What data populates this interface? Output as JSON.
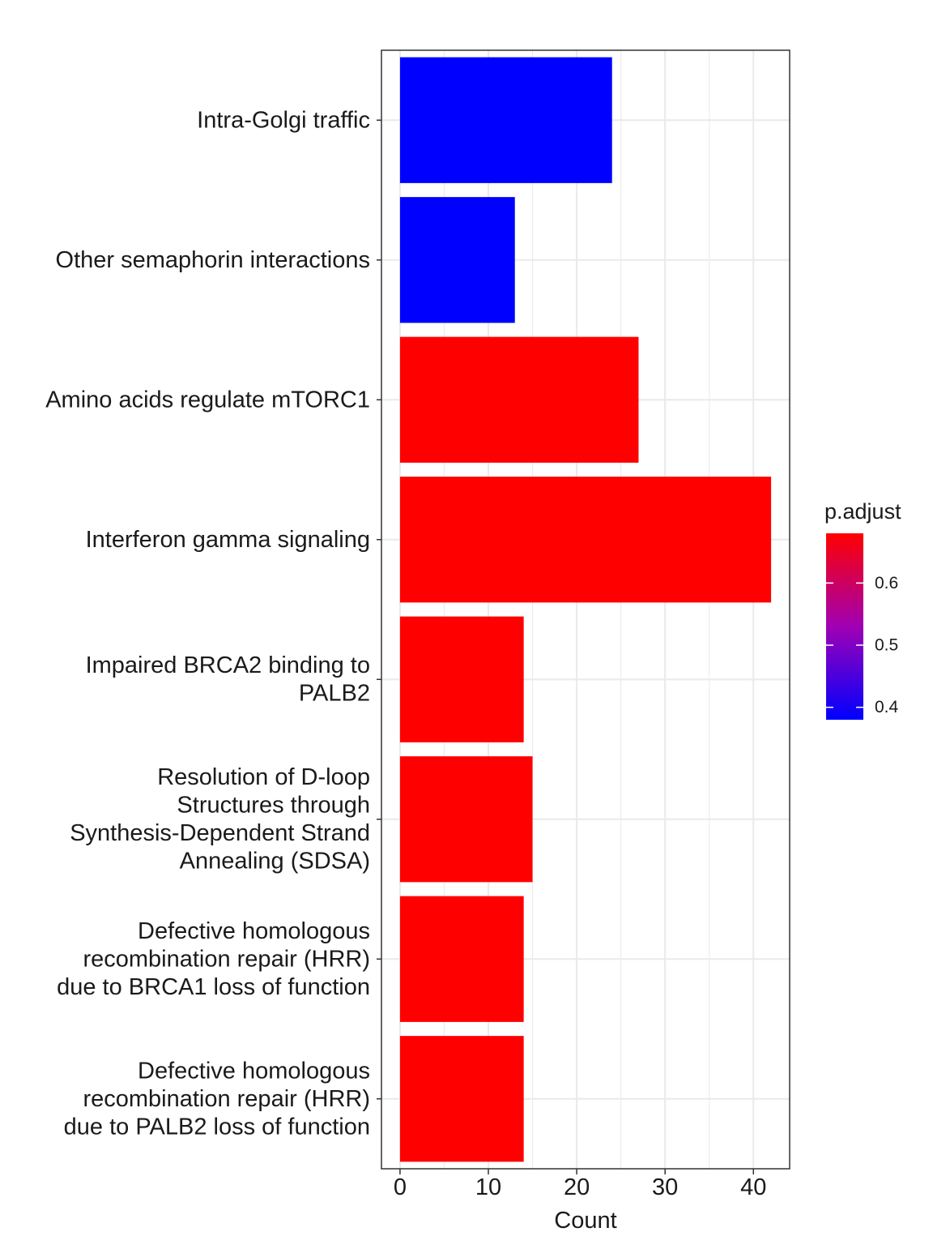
{
  "chart_data": {
    "type": "bar",
    "orientation": "horizontal",
    "xlabel": "Count",
    "ylabel": "",
    "xlim": [
      -2.1,
      44.1
    ],
    "x_ticks": [
      0,
      10,
      20,
      30,
      40
    ],
    "grid": true,
    "categories": [
      [
        "Intra-Golgi traffic"
      ],
      [
        "Other semaphorin interactions"
      ],
      [
        "Amino acids regulate mTORC1"
      ],
      [
        "Interferon gamma signaling"
      ],
      [
        "Impaired BRCA2 binding to",
        "PALB2"
      ],
      [
        "Resolution of D-loop",
        "Structures through",
        "Synthesis-Dependent Strand",
        "Annealing (SDSA)"
      ],
      [
        "Defective homologous",
        "recombination repair (HRR)",
        "due to BRCA1 loss of function"
      ],
      [
        "Defective homologous",
        "recombination repair (HRR)",
        "due to PALB2 loss of function"
      ]
    ],
    "values": [
      24,
      13,
      27,
      42,
      14,
      15,
      14,
      14
    ],
    "colors": [
      "#0000ff",
      "#0000ff",
      "#ff0000",
      "#ff0000",
      "#ff0000",
      "#ff0000",
      "#ff0000",
      "#ff0000"
    ],
    "legend": {
      "title": "p.adjust",
      "position": "right",
      "low_color": "#0000ff",
      "high_color": "#ff0000",
      "range": [
        0.38,
        0.68
      ],
      "ticks": [
        0.4,
        0.5,
        0.6
      ],
      "tick_labels": [
        "0.4",
        "0.5",
        "0.6"
      ]
    }
  }
}
